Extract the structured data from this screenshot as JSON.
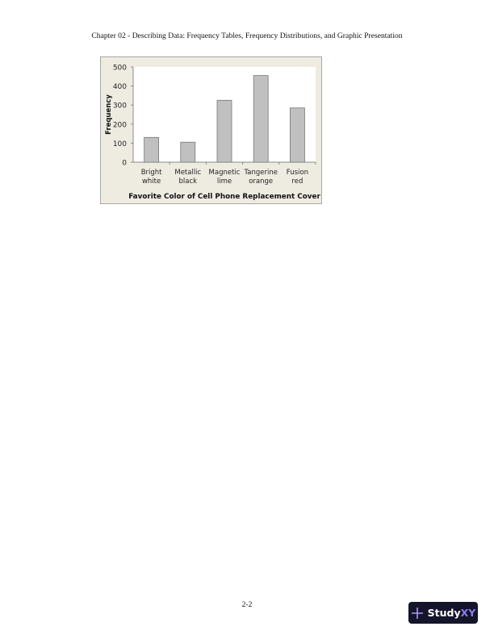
{
  "header": {
    "text": "Chapter 02 - Describing Data: Frequency Tables, Frequency Distributions, and Graphic Presentation"
  },
  "footer": {
    "page_number": "2-2"
  },
  "logo": {
    "text_main": "Study",
    "text_accent": "XY",
    "icon": "plus-icon"
  },
  "chart_data": {
    "type": "bar",
    "categories": [
      [
        "Bright",
        "white"
      ],
      [
        "Metallic",
        "black"
      ],
      [
        "Magnetic",
        "lime"
      ],
      [
        "Tangerine",
        "orange"
      ],
      [
        "Fusion",
        "red"
      ]
    ],
    "values": [
      130,
      105,
      325,
      455,
      285
    ],
    "xlabel": "Favorite Color of Cell Phone Replacement Cover",
    "ylabel": "Frequency",
    "ylim": [
      0,
      500
    ],
    "yticks": [
      0,
      100,
      200,
      300,
      400,
      500
    ],
    "grid": false,
    "bar_color": "#c0c0c0",
    "background_color": "#eeece1"
  }
}
